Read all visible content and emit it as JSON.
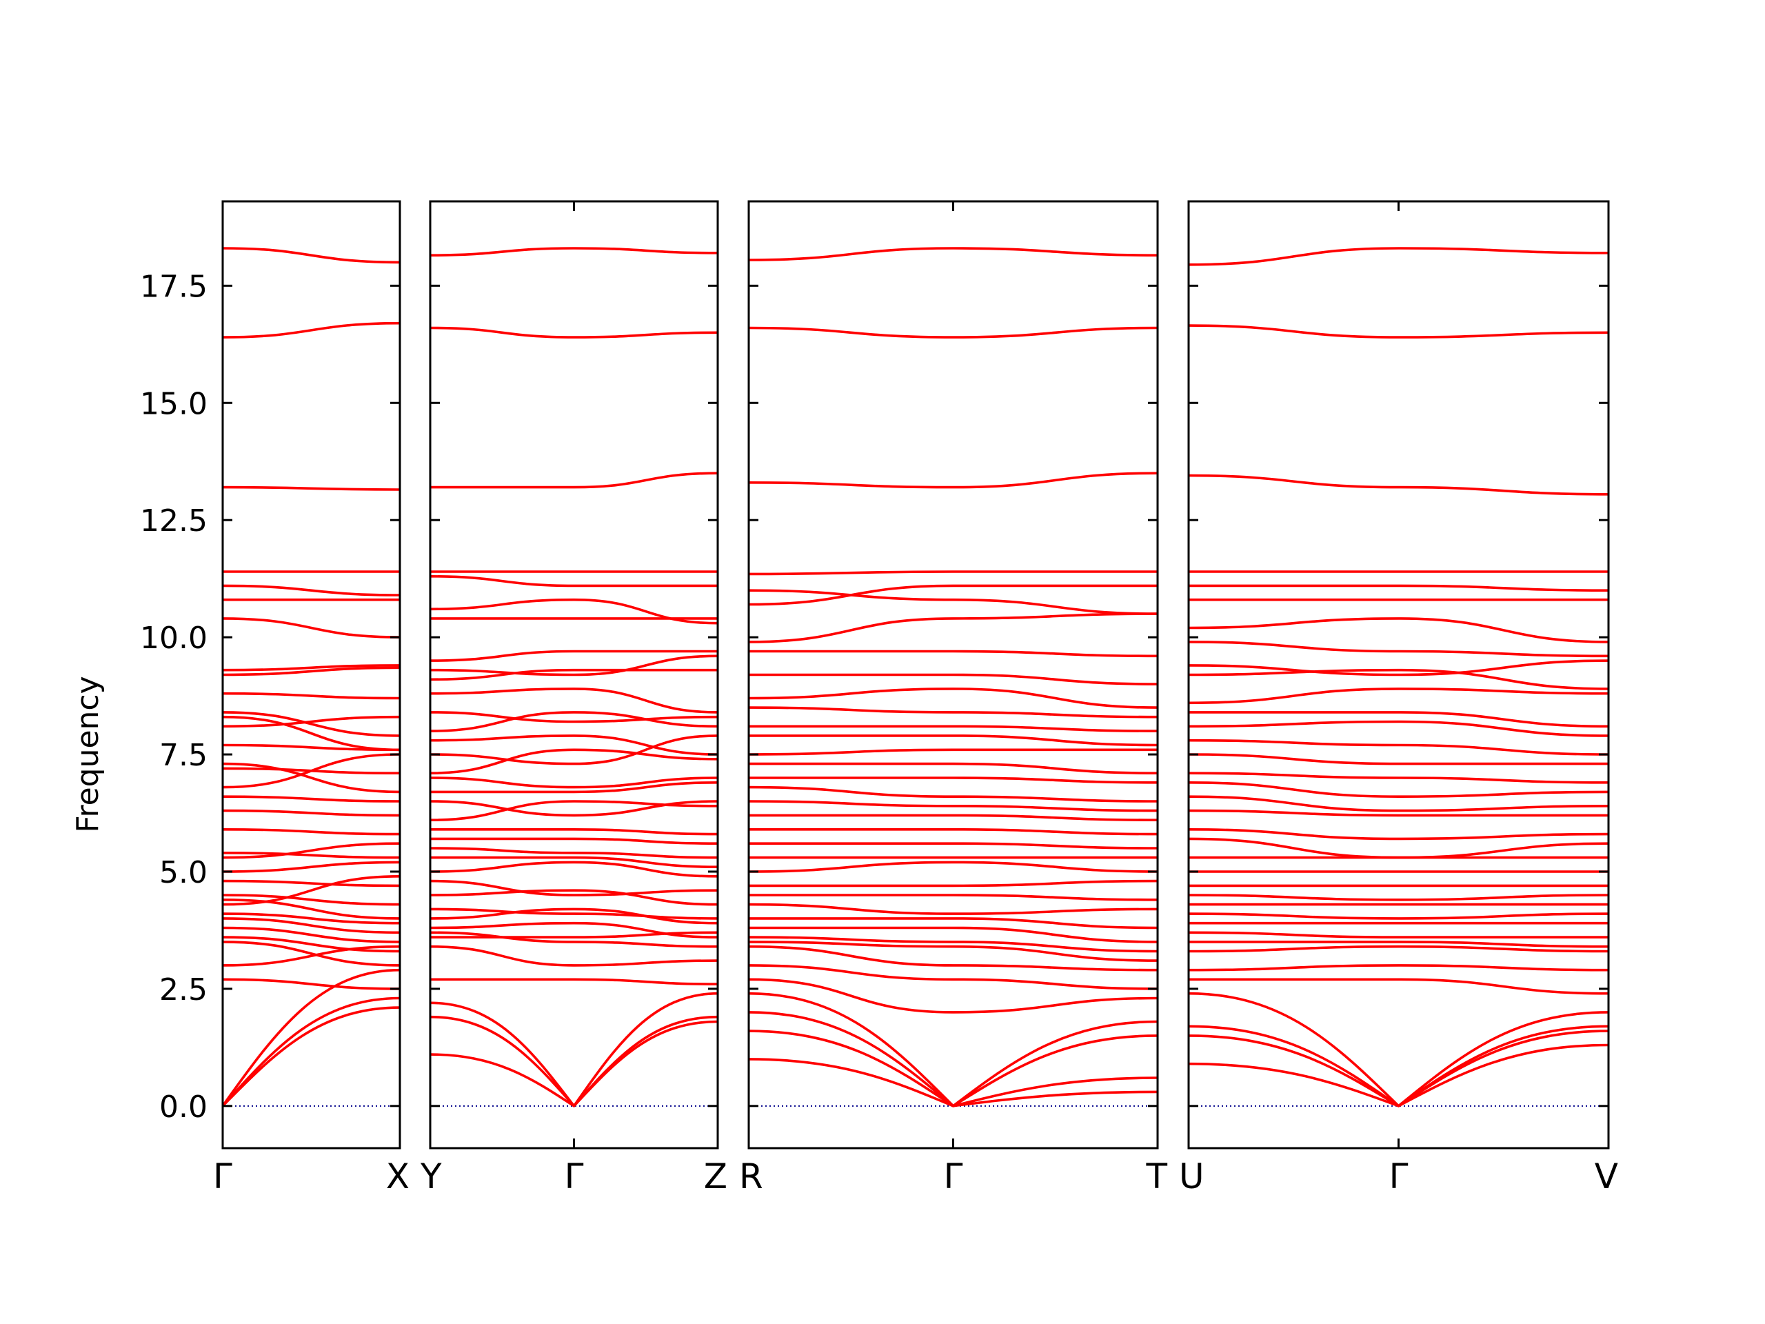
{
  "chart_data": {
    "type": "line",
    "title": "",
    "ylabel": "Frequency",
    "xlabel": "",
    "ylim": [
      -0.9,
      19.3
    ],
    "yticks": [
      0.0,
      2.5,
      5.0,
      7.5,
      10.0,
      12.5,
      15.0,
      17.5
    ],
    "ytick_labels": [
      "0.0",
      "2.5",
      "5.0",
      "7.5",
      "10.0",
      "12.5",
      "15.0",
      "17.5"
    ],
    "grid": false,
    "line_color": "#ff0000",
    "zero_line_color": "#00008b",
    "panels": [
      {
        "path": [
          "Γ",
          "X"
        ],
        "kpoint_labels": [
          "Γ",
          "X"
        ],
        "bands": [
          [
            18.3,
            18.0
          ],
          [
            16.4,
            16.7
          ],
          [
            13.2,
            13.15
          ],
          [
            11.4,
            11.4
          ],
          [
            11.1,
            10.9
          ],
          [
            10.8,
            10.8
          ],
          [
            10.4,
            10.0
          ],
          [
            9.3,
            9.4
          ],
          [
            9.2,
            9.35
          ],
          [
            8.8,
            8.7
          ],
          [
            8.4,
            7.9
          ],
          [
            8.3,
            7.6
          ],
          [
            8.1,
            8.3
          ],
          [
            7.7,
            7.6
          ],
          [
            7.3,
            6.7
          ],
          [
            7.2,
            7.1
          ],
          [
            6.8,
            7.5
          ],
          [
            6.6,
            6.5
          ],
          [
            6.3,
            6.2
          ],
          [
            5.9,
            5.8
          ],
          [
            5.4,
            5.3
          ],
          [
            5.3,
            5.6
          ],
          [
            5.0,
            5.2
          ],
          [
            4.8,
            4.7
          ],
          [
            4.5,
            4.3
          ],
          [
            4.4,
            4.0
          ],
          [
            4.3,
            4.9
          ],
          [
            4.1,
            3.9
          ],
          [
            4.0,
            3.7
          ],
          [
            3.8,
            3.5
          ],
          [
            3.6,
            3.3
          ],
          [
            3.5,
            3.0
          ],
          [
            3.0,
            3.4
          ],
          [
            2.7,
            2.5
          ],
          [
            0.0,
            2.9
          ],
          [
            0.0,
            2.3
          ],
          [
            0.0,
            2.1
          ]
        ]
      },
      {
        "path": [
          "Y",
          "Γ",
          "Z"
        ],
        "kpoint_labels": [
          "Y",
          "Γ",
          "Z"
        ],
        "bands": [
          [
            18.15,
            18.3,
            18.2
          ],
          [
            16.6,
            16.4,
            16.5
          ],
          [
            13.2,
            13.2,
            13.5
          ],
          [
            11.4,
            11.4,
            11.4
          ],
          [
            11.3,
            11.1,
            11.1
          ],
          [
            10.6,
            10.8,
            10.3
          ],
          [
            10.4,
            10.4,
            10.4
          ],
          [
            9.5,
            9.7,
            9.7
          ],
          [
            9.3,
            9.2,
            9.6
          ],
          [
            9.1,
            9.3,
            9.3
          ],
          [
            8.8,
            8.9,
            8.4
          ],
          [
            8.4,
            8.2,
            8.3
          ],
          [
            8.0,
            8.4,
            8.1
          ],
          [
            7.8,
            7.9,
            7.5
          ],
          [
            7.5,
            7.3,
            7.9
          ],
          [
            7.1,
            7.6,
            7.4
          ],
          [
            7.0,
            6.8,
            7.0
          ],
          [
            6.7,
            6.7,
            6.9
          ],
          [
            6.5,
            6.2,
            6.5
          ],
          [
            6.1,
            6.5,
            6.4
          ],
          [
            5.9,
            5.9,
            5.8
          ],
          [
            5.7,
            5.7,
            5.6
          ],
          [
            5.5,
            5.4,
            5.3
          ],
          [
            5.3,
            5.3,
            5.1
          ],
          [
            5.0,
            5.2,
            4.9
          ],
          [
            4.8,
            4.5,
            4.6
          ],
          [
            4.5,
            4.6,
            4.3
          ],
          [
            4.2,
            4.1,
            4.0
          ],
          [
            4.0,
            4.2,
            3.9
          ],
          [
            3.8,
            3.9,
            3.6
          ],
          [
            3.7,
            3.5,
            3.4
          ],
          [
            3.6,
            3.6,
            3.7
          ],
          [
            3.4,
            3.0,
            3.1
          ],
          [
            2.7,
            2.7,
            2.6
          ],
          [
            2.2,
            0.0,
            2.4
          ],
          [
            1.9,
            0.0,
            1.9
          ],
          [
            1.1,
            0.0,
            1.8
          ]
        ]
      },
      {
        "path": [
          "R",
          "Γ",
          "T"
        ],
        "kpoint_labels": [
          "R",
          "Γ",
          "T"
        ],
        "bands": [
          [
            18.05,
            18.3,
            18.15
          ],
          [
            16.6,
            16.4,
            16.6
          ],
          [
            13.3,
            13.2,
            13.5
          ],
          [
            11.35,
            11.4,
            11.4
          ],
          [
            11.0,
            10.8,
            10.5
          ],
          [
            10.7,
            11.1,
            11.1
          ],
          [
            9.9,
            10.4,
            10.5
          ],
          [
            9.7,
            9.7,
            9.6
          ],
          [
            9.2,
            9.2,
            9.0
          ],
          [
            8.7,
            8.9,
            8.5
          ],
          [
            8.5,
            8.4,
            8.3
          ],
          [
            8.1,
            8.1,
            8.0
          ],
          [
            7.9,
            7.9,
            7.7
          ],
          [
            7.5,
            7.6,
            7.6
          ],
          [
            7.3,
            7.3,
            7.1
          ],
          [
            7.0,
            7.0,
            6.9
          ],
          [
            6.8,
            6.6,
            6.5
          ],
          [
            6.5,
            6.4,
            6.3
          ],
          [
            6.2,
            6.2,
            6.1
          ],
          [
            5.9,
            5.9,
            5.8
          ],
          [
            5.6,
            5.6,
            5.5
          ],
          [
            5.3,
            5.3,
            5.3
          ],
          [
            5.0,
            5.2,
            5.0
          ],
          [
            4.7,
            4.7,
            4.8
          ],
          [
            4.5,
            4.5,
            4.4
          ],
          [
            4.3,
            4.1,
            4.2
          ],
          [
            4.0,
            4.0,
            3.8
          ],
          [
            3.8,
            3.8,
            3.5
          ],
          [
            3.6,
            3.5,
            3.3
          ],
          [
            3.5,
            3.4,
            3.1
          ],
          [
            3.4,
            3.0,
            2.9
          ],
          [
            3.0,
            2.7,
            2.5
          ],
          [
            2.7,
            2.0,
            2.3
          ],
          [
            2.4,
            0.0,
            1.8
          ],
          [
            2.0,
            0.0,
            1.5
          ],
          [
            1.6,
            0.0,
            0.6
          ],
          [
            1.0,
            0.0,
            0.3
          ]
        ]
      },
      {
        "path": [
          "U",
          "Γ",
          "V"
        ],
        "kpoint_labels": [
          "U",
          "Γ",
          "V"
        ],
        "bands": [
          [
            17.95,
            18.3,
            18.2
          ],
          [
            16.65,
            16.4,
            16.5
          ],
          [
            13.45,
            13.2,
            13.05
          ],
          [
            11.4,
            11.4,
            11.4
          ],
          [
            11.1,
            11.1,
            11.0
          ],
          [
            10.8,
            10.8,
            10.8
          ],
          [
            10.2,
            10.4,
            9.9
          ],
          [
            9.9,
            9.7,
            9.6
          ],
          [
            9.4,
            9.2,
            9.5
          ],
          [
            9.2,
            9.3,
            8.9
          ],
          [
            8.6,
            8.9,
            8.8
          ],
          [
            8.4,
            8.4,
            8.1
          ],
          [
            8.1,
            8.2,
            7.9
          ],
          [
            7.8,
            7.7,
            7.5
          ],
          [
            7.5,
            7.3,
            7.3
          ],
          [
            7.1,
            7.0,
            6.9
          ],
          [
            6.9,
            6.6,
            6.7
          ],
          [
            6.6,
            6.3,
            6.4
          ],
          [
            6.3,
            6.2,
            6.2
          ],
          [
            5.9,
            5.7,
            5.8
          ],
          [
            5.7,
            5.3,
            5.6
          ],
          [
            5.3,
            5.3,
            5.3
          ],
          [
            5.0,
            5.0,
            5.0
          ],
          [
            4.7,
            4.7,
            4.7
          ],
          [
            4.5,
            4.4,
            4.5
          ],
          [
            4.3,
            4.3,
            4.3
          ],
          [
            4.1,
            4.0,
            4.1
          ],
          [
            3.9,
            3.9,
            3.9
          ],
          [
            3.7,
            3.6,
            3.6
          ],
          [
            3.5,
            3.5,
            3.4
          ],
          [
            3.3,
            3.4,
            3.3
          ],
          [
            2.9,
            3.0,
            2.9
          ],
          [
            2.7,
            2.7,
            2.4
          ],
          [
            2.4,
            0.0,
            2.0
          ],
          [
            1.7,
            0.0,
            1.7
          ],
          [
            1.5,
            0.0,
            1.6
          ],
          [
            0.9,
            0.0,
            1.3
          ]
        ]
      }
    ]
  }
}
